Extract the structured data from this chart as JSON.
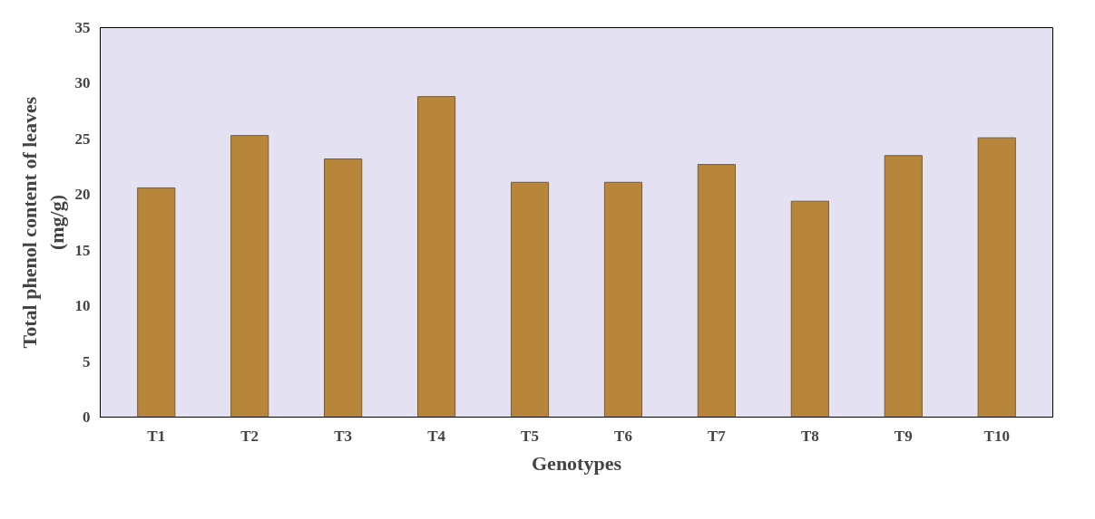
{
  "chart_data": {
    "type": "bar",
    "xlabel": "Genotypes",
    "ylabel": "Total phenol content of leaves\n(mg/g)",
    "categories": [
      "T1",
      "T2",
      "T3",
      "T4",
      "T5",
      "T6",
      "T7",
      "T8",
      "T9",
      "T10"
    ],
    "values": [
      20.6,
      25.3,
      23.2,
      28.8,
      21.1,
      21.1,
      22.7,
      19.4,
      23.5,
      25.1
    ],
    "color": "#b8863b",
    "ylim": [
      0,
      35
    ],
    "yticks": [
      0,
      5,
      10,
      15,
      20,
      25,
      30,
      35
    ],
    "grid": false
  }
}
